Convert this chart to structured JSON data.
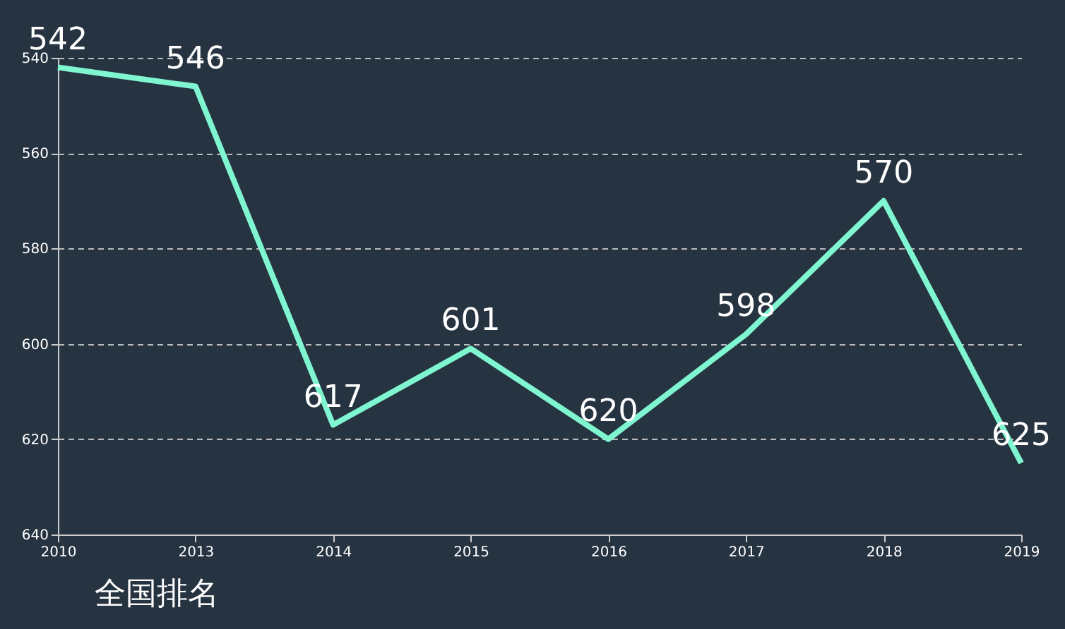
{
  "chart_data": {
    "type": "line",
    "categories": [
      "2010",
      "2013",
      "2014",
      "2015",
      "2016",
      "2017",
      "2018",
      "2019"
    ],
    "series": [
      {
        "name": "全国排名",
        "color": "#7ff5d0",
        "values": [
          542,
          546,
          617,
          601,
          620,
          598,
          570,
          625
        ]
      }
    ],
    "ylim": [
      640,
      540
    ],
    "yticks": [
      540,
      560,
      580,
      600,
      620,
      640
    ],
    "grid": "y",
    "legend": "bottom",
    "marker": "none",
    "line_style": "solid",
    "data_labels": true
  }
}
